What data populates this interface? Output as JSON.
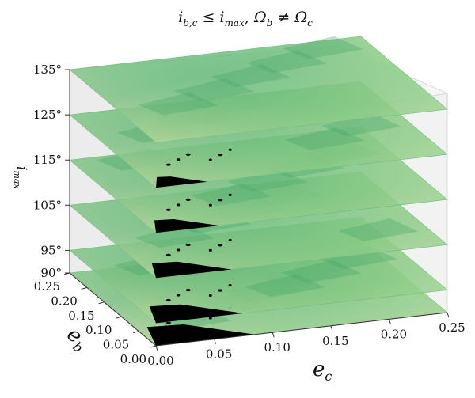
{
  "chart_data": {
    "type": "3d-surface-stack",
    "title": "i_{b,c} ≤ i_{max}, Ω_b ≠ Ω_c",
    "title_parts": {
      "a": "i",
      "a_sub": "b,c",
      "rel1": " ≤ ",
      "b": "i",
      "b_sub": "max",
      "sep": ", ",
      "c": "Ω",
      "c_sub": "b",
      "rel2": " ≠ ",
      "d": "Ω",
      "d_sub": "c"
    },
    "xlabel": {
      "base": "e",
      "sub": "c"
    },
    "ylabel": {
      "base": "e",
      "sub": "b"
    },
    "zlabel": {
      "base": "i",
      "sub": "max"
    },
    "xlim": [
      0.0,
      0.25
    ],
    "ylim": [
      0.0,
      0.25
    ],
    "xticks": [
      "0.00",
      "0.05",
      "0.10",
      "0.15",
      "0.20",
      "0.25"
    ],
    "yticks": [
      "0.00",
      "0.05",
      "0.10",
      "0.15",
      "0.20",
      "0.25"
    ],
    "zticks": [
      "90°",
      "95°",
      "105°",
      "115°",
      "125°",
      "135°"
    ],
    "zvalues": [
      90,
      95,
      105,
      115,
      125,
      135
    ],
    "colormap": [
      "#f5e6b8",
      "#e8efb0",
      "#c6e5a0",
      "#9bd48e",
      "#6cbf7e",
      "#45a66a"
    ],
    "unstable_color": "#000000",
    "layers": [
      {
        "imax": 90,
        "label": "90°"
      },
      {
        "imax": 95,
        "label": "95°"
      },
      {
        "imax": 105,
        "label": "105°"
      },
      {
        "imax": 115,
        "label": "115°"
      },
      {
        "imax": 125,
        "label": "125°"
      },
      {
        "imax": 135,
        "label": "135°"
      }
    ]
  }
}
